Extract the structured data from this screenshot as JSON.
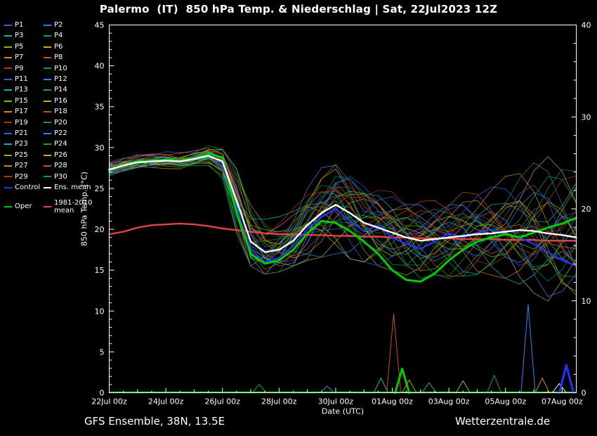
{
  "title": "Palermo  (IT)  850 hPa Temp. & Niederschlag | Sat, 22Jul2023 12Z",
  "footer": {
    "left": "GFS Ensemble, 38N, 13.5E",
    "right": "Wetterzentrale.de"
  },
  "legend": {
    "members": [
      {
        "label": "P1",
        "color": "#4455ee"
      },
      {
        "label": "P2",
        "color": "#2288ff"
      },
      {
        "label": "P3",
        "color": "#00bbbb"
      },
      {
        "label": "P4",
        "color": "#00aa44"
      },
      {
        "label": "P5",
        "color": "#88bb00"
      },
      {
        "label": "P6",
        "color": "#bbbb00"
      },
      {
        "label": "P7",
        "color": "#dd8800"
      },
      {
        "label": "P8",
        "color": "#cc5500"
      },
      {
        "label": "P9",
        "color": "#bb3300"
      },
      {
        "label": "P10",
        "color": "#009977"
      },
      {
        "label": "P11",
        "color": "#4455ee"
      },
      {
        "label": "P12",
        "color": "#2288ff"
      },
      {
        "label": "P13",
        "color": "#00bbbb"
      },
      {
        "label": "P14",
        "color": "#00aa44"
      },
      {
        "label": "P15",
        "color": "#88bb00"
      },
      {
        "label": "P16",
        "color": "#bbbb00"
      },
      {
        "label": "P17",
        "color": "#dd8800"
      },
      {
        "label": "P18",
        "color": "#cc5500"
      },
      {
        "label": "P19",
        "color": "#bb3300"
      },
      {
        "label": "P20",
        "color": "#009977"
      },
      {
        "label": "P21",
        "color": "#4455ee"
      },
      {
        "label": "P22",
        "color": "#2288ff"
      },
      {
        "label": "P23",
        "color": "#00bbbb"
      },
      {
        "label": "P24",
        "color": "#00aa44"
      },
      {
        "label": "P25",
        "color": "#88bb00"
      },
      {
        "label": "P26",
        "color": "#bbbb00"
      },
      {
        "label": "P27",
        "color": "#dd8800"
      },
      {
        "label": "P28",
        "color": "#cc5500"
      },
      {
        "label": "P29",
        "color": "#bb3300"
      },
      {
        "label": "P30",
        "color": "#009977"
      }
    ],
    "extra": [
      {
        "label": "Control",
        "color": "#2233ff"
      },
      {
        "label": "Ens. mean",
        "color": "#ffffff"
      },
      {
        "label": "Oper",
        "color": "#00cc00"
      },
      {
        "label": "1981-2010 mean",
        "color": "#e04444"
      }
    ]
  },
  "chart_data": {
    "type": "line",
    "title": "Palermo (IT) 850 hPa Temp. & Niederschlag | Sat, 22Jul2023 12Z",
    "x": {
      "label": "Date (UTC)",
      "days": 16.5,
      "tick_days": [
        0,
        2,
        4,
        6,
        8,
        10,
        12,
        14,
        16
      ],
      "tick_labels": [
        "22Jul 00z",
        "24Jul 00z",
        "26Jul 00z",
        "28Jul 00z",
        "30Jul 00z",
        "01Aug 00z",
        "03Aug 00z",
        "05Aug 00z",
        "07Aug 00z"
      ]
    },
    "y_left": {
      "label": "850 hPa Temp. (°C)",
      "min": 0,
      "max": 45,
      "major_step": 5,
      "minor_step": 1
    },
    "y_right": {
      "label": "Niederschlag (mm)",
      "min": 0,
      "max": 40,
      "major_step": 10,
      "minor_step": 2
    },
    "sample_days": [
      0,
      0.5,
      1,
      1.5,
      2,
      2.5,
      3,
      3.5,
      4,
      4.5,
      5,
      5.5,
      6,
      6.5,
      7,
      7.5,
      8,
      8.5,
      9,
      9.5,
      10,
      10.5,
      11,
      11.5,
      12,
      12.5,
      13,
      13.5,
      14,
      14.5,
      15,
      15.5,
      16,
      16.5
    ],
    "series": [
      {
        "name": "1981-2010 mean",
        "color": "#e04444",
        "width": 2.4,
        "values": [
          19.4,
          19.7,
          20.2,
          20.5,
          20.6,
          20.7,
          20.6,
          20.4,
          20.1,
          19.9,
          19.7,
          19.5,
          19.4,
          19.4,
          19.3,
          19.3,
          19.2,
          19.2,
          19.1,
          19.1,
          19.0,
          19.0,
          18.9,
          18.9,
          18.9,
          18.8,
          18.8,
          18.8,
          18.7,
          18.7,
          18.7,
          18.6,
          18.6,
          18.6
        ]
      },
      {
        "name": "Control",
        "color": "#2233ff",
        "width": 2.2,
        "values": [
          27.0,
          27.7,
          28.3,
          28.2,
          28.5,
          28.2,
          28.8,
          29.2,
          28.0,
          22.5,
          17.5,
          16.0,
          16.5,
          18.0,
          20.0,
          21.5,
          22.5,
          21.0,
          19.8,
          20.5,
          19.0,
          18.2,
          17.6,
          18.5,
          19.5,
          19.0,
          19.6,
          20.0,
          19.5,
          19.0,
          18.2,
          17.2,
          16.2,
          15.5
        ]
      },
      {
        "name": "Oper",
        "color": "#00cc00",
        "width": 3,
        "values": [
          27.2,
          27.8,
          28.3,
          28.4,
          28.5,
          28.4,
          28.7,
          29.3,
          28.8,
          22.0,
          17.0,
          15.8,
          16.2,
          17.5,
          19.5,
          21.0,
          20.8,
          19.8,
          18.5,
          17.0,
          15.0,
          13.8,
          13.6,
          14.6,
          16.2,
          17.5,
          18.5,
          19.0,
          19.4,
          19.0,
          19.6,
          20.2,
          20.7,
          21.4
        ]
      },
      {
        "name": "Ens. mean",
        "color": "#ffffff",
        "width": 2.4,
        "values": [
          27.3,
          27.8,
          28.2,
          28.3,
          28.4,
          28.3,
          28.6,
          29.0,
          28.3,
          23.5,
          18.5,
          17.2,
          17.5,
          18.6,
          20.5,
          22.0,
          23.0,
          22.0,
          20.8,
          20.2,
          19.6,
          19.0,
          18.6,
          18.8,
          19.0,
          19.2,
          19.4,
          19.5,
          19.7,
          19.9,
          19.8,
          19.5,
          19.3,
          19.0
        ]
      }
    ],
    "ensemble_envelope": {
      "min": [
        26.3,
        26.8,
        27.2,
        27.3,
        27.3,
        27.2,
        27.4,
        27.6,
        25.5,
        19.5,
        15.5,
        14.5,
        14.8,
        15.5,
        16.2,
        16.6,
        17.0,
        16.4,
        16.0,
        15.5,
        15.0,
        14.4,
        14.0,
        14.4,
        14.0,
        13.6,
        14.0,
        14.4,
        14.0,
        13.0,
        12.2,
        11.2,
        10.8,
        10.5
      ],
      "max": [
        28.2,
        28.8,
        29.2,
        29.4,
        29.5,
        29.4,
        29.6,
        30.2,
        29.8,
        29.0,
        27.0,
        24.0,
        23.2,
        24.6,
        26.6,
        28.6,
        30.2,
        29.6,
        28.6,
        27.6,
        27.0,
        26.4,
        26.0,
        25.6,
        25.2,
        25.6,
        26.0,
        26.6,
        27.0,
        28.0,
        29.4,
        30.0,
        29.2,
        28.6
      ]
    },
    "precip_spikes": [
      {
        "day": 5.3,
        "mm": 0.9,
        "color": "#00aa44",
        "stroke": 1
      },
      {
        "day": 7.7,
        "mm": 0.7,
        "color": "#2288ff",
        "stroke": 1
      },
      {
        "day": 9.6,
        "mm": 1.6,
        "color": "#00bbbb",
        "stroke": 1
      },
      {
        "day": 10.05,
        "mm": 8.6,
        "color": "#cc5500",
        "stroke": 1
      },
      {
        "day": 10.35,
        "mm": 2.6,
        "color": "#00cc00",
        "stroke": 3
      },
      {
        "day": 10.6,
        "mm": 1.4,
        "color": "#88bb00",
        "stroke": 1
      },
      {
        "day": 11.3,
        "mm": 1.1,
        "color": "#00bbbb",
        "stroke": 1
      },
      {
        "day": 12.5,
        "mm": 1.3,
        "color": "#bbbb00",
        "stroke": 1
      },
      {
        "day": 13.6,
        "mm": 1.9,
        "color": "#00aa44",
        "stroke": 1
      },
      {
        "day": 14.8,
        "mm": 9.6,
        "color": "#2288ff",
        "stroke": 1
      },
      {
        "day": 15.3,
        "mm": 1.6,
        "color": "#dd8800",
        "stroke": 1
      },
      {
        "day": 15.9,
        "mm": 1.0,
        "color": "#ffffff",
        "stroke": 1
      },
      {
        "day": 16.15,
        "mm": 3.0,
        "color": "#2233ff",
        "stroke": 3
      }
    ]
  }
}
